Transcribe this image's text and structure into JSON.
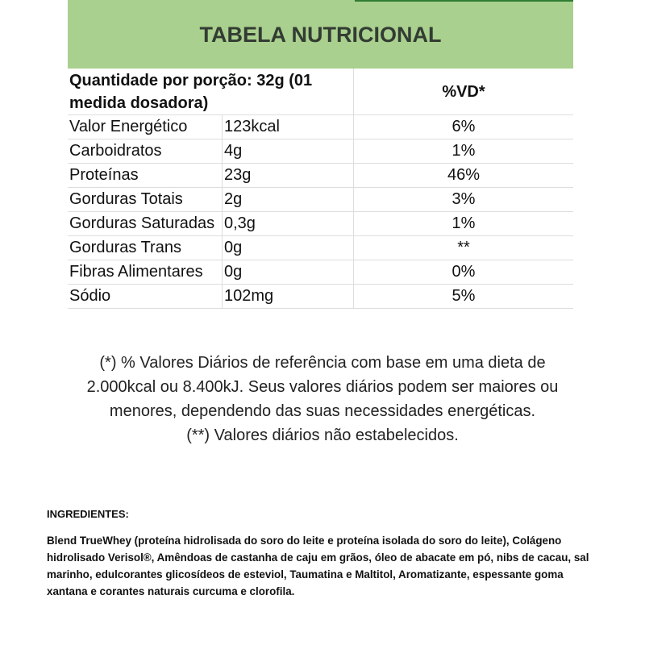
{
  "title": "TABELA NUTRICIONAL",
  "header": {
    "portion": "Quantidade por porção: 32g (01 medida dosadora)",
    "vd": "%VD*"
  },
  "rows": [
    {
      "name": "Valor Energético",
      "amount": "123kcal",
      "vd": "6%"
    },
    {
      "name": "Carboidratos",
      "amount": "4g",
      "vd": "1%"
    },
    {
      "name": "Proteínas",
      "amount": "23g",
      "vd": "46%"
    },
    {
      "name": "Gorduras Totais",
      "amount": "2g",
      "vd": "3%"
    },
    {
      "name": "Gorduras Saturadas",
      "amount": "0,3g",
      "vd": "1%"
    },
    {
      "name": "Gorduras Trans",
      "amount": "0g",
      "vd": "**"
    },
    {
      "name": "Fibras Alimentares",
      "amount": "0g",
      "vd": "0%"
    },
    {
      "name": "Sódio",
      "amount": "102mg",
      "vd": "5%"
    }
  ],
  "footnote1": "(*) % Valores Diários de referência com base em uma dieta de 2.000kcal ou 8.400kJ. Seus valores diários podem ser maiores ou menores, dependendo das suas necessidades energéticas.",
  "footnote2": "(**) Valores diários não estabelecidos.",
  "ingredients": {
    "title": "INGREDIENTES:",
    "text": "Blend TrueWhey (proteína hidrolisada do soro do leite e proteína isolada do soro do leite), Colágeno hidrolisado Verisol®, Amêndoas de castanha de caju em grãos, óleo de abacate em pó, nibs de cacau, sal marinho, edulcorantes glicosídeos de esteviol, Taumatina e Maltitol, Aromatizante, espessante goma xantana e corantes naturais curcuma e clorofila."
  },
  "colors": {
    "header_bg": "#a9d08e",
    "accent": "#2e7d32"
  }
}
